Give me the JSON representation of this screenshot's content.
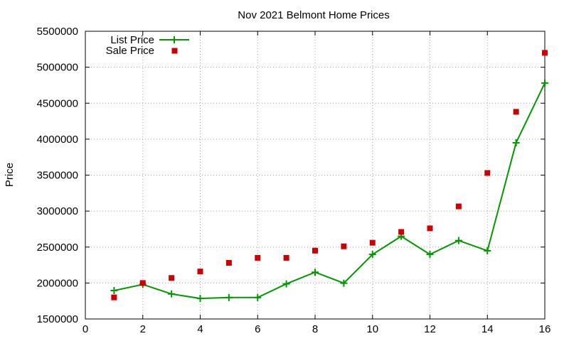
{
  "chart_data": {
    "type": "line",
    "title": "Nov 2021 Belmont Home Prices",
    "xlabel": "",
    "ylabel": "Price",
    "xlim": [
      0,
      16
    ],
    "ylim": [
      1500000,
      5500000
    ],
    "x_ticks": [
      "0",
      "2",
      "4",
      "6",
      "8",
      "10",
      "12",
      "14",
      "16"
    ],
    "y_ticks": [
      "1500000",
      "2000000",
      "2500000",
      "3000000",
      "3500000",
      "4000000",
      "4500000",
      "5000000",
      "5500000"
    ],
    "grid": true,
    "legend_position": "top-left",
    "series": [
      {
        "name": "List Price",
        "style": "line+points",
        "color": "#009900",
        "marker": "plus",
        "x": [
          1,
          2,
          3,
          4,
          5,
          6,
          7,
          8,
          9,
          10,
          11,
          12,
          13,
          14,
          15,
          16
        ],
        "values": [
          1895000,
          1980000,
          1848000,
          1785000,
          1798000,
          1798000,
          1988000,
          2150000,
          1998000,
          2398000,
          2650000,
          2398000,
          2590000,
          2448000,
          3950000,
          4780000
        ]
      },
      {
        "name": "Sale Price",
        "style": "points",
        "color": "#cc0000",
        "marker": "square",
        "x": [
          1,
          2,
          3,
          4,
          5,
          6,
          7,
          8,
          9,
          10,
          11,
          12,
          13,
          14,
          15,
          16
        ],
        "values": [
          1800000,
          2000000,
          2070000,
          2160000,
          2280000,
          2350000,
          2350000,
          2450000,
          2510000,
          2560000,
          2710000,
          2760000,
          3065000,
          3530000,
          4380000,
          5200000
        ]
      }
    ]
  }
}
